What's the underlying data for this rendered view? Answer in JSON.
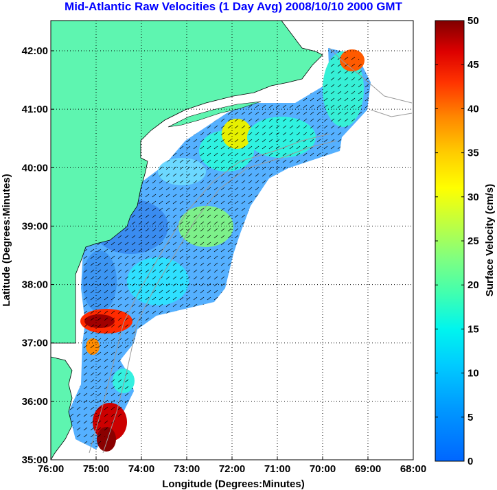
{
  "title": "Mid-Atlantic Raw Velocities (1 Day Avg) 2008/10/10 2000 GMT",
  "axes": {
    "xlabel": "Longitude (Degrees:Minutes)",
    "ylabel": "Latitude (Degrees:Minutes)",
    "x_ticks": [
      "76:00",
      "75:00",
      "74:00",
      "73:00",
      "72:00",
      "71:00",
      "70:00",
      "69:00",
      "68:00"
    ],
    "y_ticks": [
      "42:00",
      "41:00",
      "40:00",
      "39:00",
      "38:00",
      "37:00",
      "36:00",
      "35:00"
    ],
    "grid": "dotted"
  },
  "colorbar": {
    "label": "Surface Velocity (cm/s)",
    "ticks": [
      "50",
      "45",
      "40",
      "35",
      "30",
      "25",
      "20",
      "15",
      "10",
      "5",
      "0"
    ],
    "range": [
      0,
      50
    ]
  },
  "colors": {
    "land": "#5ef5b0",
    "title": "#0000ff",
    "bathymetry": "#9a9a9a"
  }
}
